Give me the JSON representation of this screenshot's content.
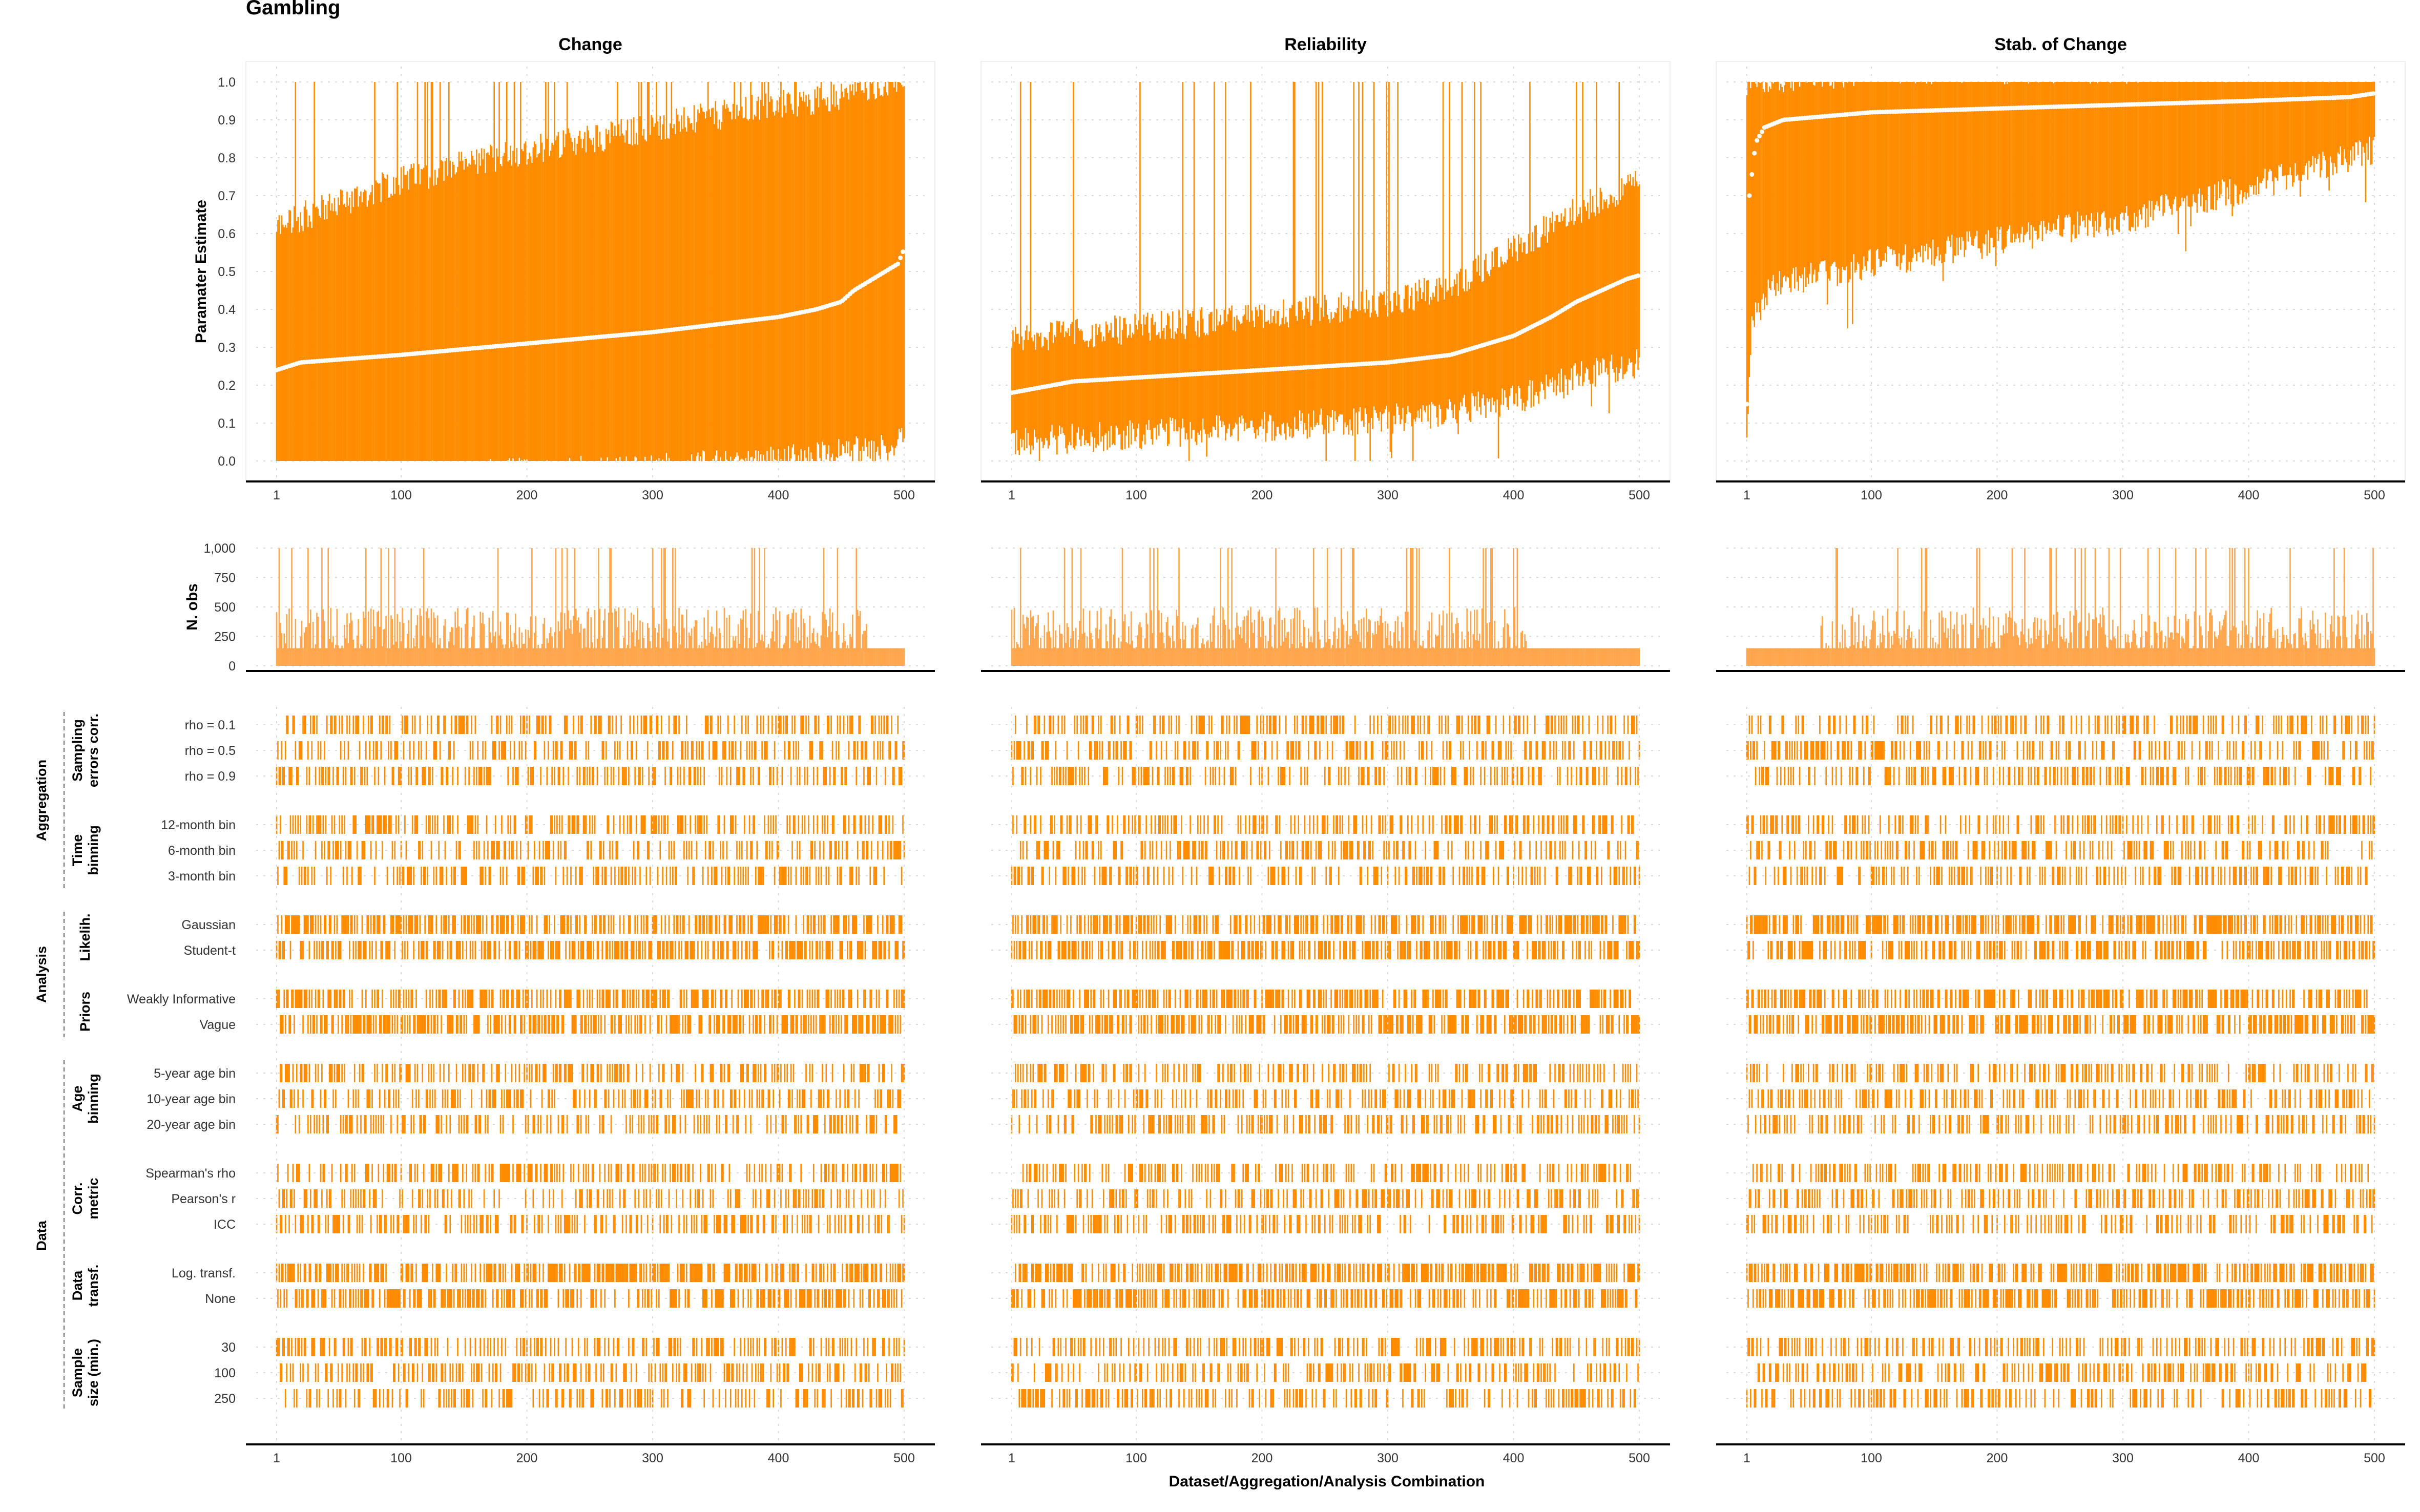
{
  "figure": {
    "title": "Gambling",
    "xlabel": "Dataset/Aggregation/Analysis Combination",
    "colors": {
      "main": "#ff8c00",
      "light": "#ffa64d",
      "median": "#ffffff",
      "axis": "#000000",
      "grid": "#d9d9d9",
      "text": "#333333"
    }
  },
  "chart_data": {
    "type": "specification-curve",
    "x_range": [
      1,
      500
    ],
    "x_ticks": [
      1,
      100,
      200,
      300,
      400,
      500
    ],
    "est_ylabel": "Paramater Estimate",
    "est_ylim": [
      0,
      1
    ],
    "est_yticks": [
      "0.0",
      "0.1",
      "0.2",
      "0.3",
      "0.4",
      "0.5",
      "0.6",
      "0.7",
      "0.8",
      "0.9",
      "1.0"
    ],
    "nobs_ylabel": "N. obs",
    "nobs_ylim": [
      0,
      1000
    ],
    "nobs_yticks": [
      "0",
      "250",
      "500",
      "750",
      "1,000"
    ],
    "panels": [
      {
        "name": "Change",
        "median": [
          [
            1,
            0.24
          ],
          [
            20,
            0.26
          ],
          [
            100,
            0.28
          ],
          [
            200,
            0.31
          ],
          [
            300,
            0.34
          ],
          [
            400,
            0.38
          ],
          [
            430,
            0.4
          ],
          [
            450,
            0.42
          ],
          [
            460,
            0.45
          ],
          [
            480,
            0.49
          ],
          [
            495,
            0.52
          ],
          [
            500,
            0.56
          ]
        ],
        "lower": [
          [
            1,
            0.0
          ],
          [
            100,
            0.0
          ],
          [
            200,
            0.01
          ],
          [
            300,
            0.02
          ],
          [
            400,
            0.04
          ],
          [
            450,
            0.06
          ],
          [
            490,
            0.08
          ],
          [
            500,
            0.1
          ]
        ],
        "upper": [
          [
            1,
            0.58
          ],
          [
            100,
            0.7
          ],
          [
            200,
            0.78
          ],
          [
            300,
            0.84
          ],
          [
            400,
            0.9
          ],
          [
            450,
            0.92
          ],
          [
            500,
            0.98
          ]
        ],
        "nobs_base": 150,
        "nobs_cut": 470
      },
      {
        "name": "Reliability",
        "median": [
          [
            1,
            0.18
          ],
          [
            50,
            0.21
          ],
          [
            100,
            0.22
          ],
          [
            200,
            0.24
          ],
          [
            300,
            0.26
          ],
          [
            350,
            0.28
          ],
          [
            400,
            0.33
          ],
          [
            430,
            0.38
          ],
          [
            450,
            0.42
          ],
          [
            470,
            0.45
          ],
          [
            490,
            0.48
          ],
          [
            500,
            0.49
          ]
        ],
        "lower": [
          [
            1,
            0.09
          ],
          [
            100,
            0.11
          ],
          [
            200,
            0.13
          ],
          [
            300,
            0.15
          ],
          [
            350,
            0.17
          ],
          [
            400,
            0.2
          ],
          [
            450,
            0.26
          ],
          [
            500,
            0.3
          ]
        ],
        "upper": [
          [
            1,
            0.28
          ],
          [
            100,
            0.31
          ],
          [
            200,
            0.34
          ],
          [
            300,
            0.38
          ],
          [
            350,
            0.42
          ],
          [
            400,
            0.52
          ],
          [
            450,
            0.62
          ],
          [
            500,
            0.7
          ]
        ],
        "nobs_base": 150,
        "nobs_cut": 410
      },
      {
        "name": "Stab. of Change",
        "median": [
          [
            1,
            0.15
          ],
          [
            3,
            0.7
          ],
          [
            8,
            0.84
          ],
          [
            15,
            0.88
          ],
          [
            30,
            0.9
          ],
          [
            100,
            0.92
          ],
          [
            200,
            0.93
          ],
          [
            300,
            0.94
          ],
          [
            400,
            0.95
          ],
          [
            480,
            0.96
          ],
          [
            500,
            0.97
          ]
        ],
        "lower": [
          [
            1,
            0.12
          ],
          [
            5,
            0.4
          ],
          [
            20,
            0.5
          ],
          [
            100,
            0.56
          ],
          [
            200,
            0.62
          ],
          [
            300,
            0.68
          ],
          [
            400,
            0.76
          ],
          [
            500,
            0.86
          ]
        ],
        "upper": [
          [
            1,
            0.96
          ],
          [
            100,
            0.99
          ],
          [
            500,
            1.0
          ]
        ],
        "nobs_base": 150,
        "nobs_cut": 500
      }
    ],
    "spec_groups": [
      {
        "group": "Aggregation",
        "label": "Sampling errors corr.",
        "levels": [
          "rho = 0.1",
          "rho = 0.5",
          "rho = 0.9"
        ]
      },
      {
        "group": "Aggregation",
        "label": "Time binning",
        "levels": [
          "12-month bin",
          "6-month bin",
          "3-month bin"
        ]
      },
      {
        "group": "Analysis",
        "label": "Likelih.",
        "levels": [
          "Gaussian",
          "Student-t"
        ]
      },
      {
        "group": "Analysis",
        "label": "Priors",
        "levels": [
          "Weakly Informative",
          "Vague"
        ]
      },
      {
        "group": "Data",
        "label": "Age binning",
        "levels": [
          "5-year age bin",
          "10-year age bin",
          "20-year age bin"
        ]
      },
      {
        "group": "Data",
        "label": "Corr. metric",
        "levels": [
          "Spearman's rho",
          "Pearson's r",
          "ICC"
        ]
      },
      {
        "group": "Data",
        "label": "Data transf.",
        "levels": [
          "Log. transf.",
          "None"
        ]
      },
      {
        "group": "Data",
        "label": "Sample size (min.)",
        "levels": [
          "30",
          "100",
          "250"
        ]
      }
    ],
    "outer_groups": [
      "Aggregation",
      "Analysis",
      "Data"
    ]
  }
}
